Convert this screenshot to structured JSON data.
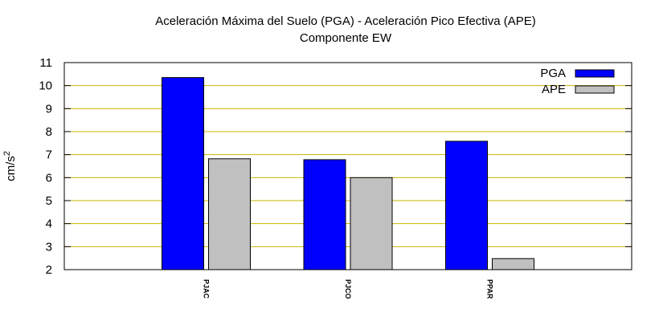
{
  "chart_data": {
    "type": "bar",
    "title": "Aceleración Máxima del Suelo (PGA) -  Aceleración Pico Efectiva (APE)",
    "subtitle": "Componente EW",
    "xlabel": "",
    "ylabel": "cm/s",
    "ylabel_superscript": "2",
    "ylim": [
      2,
      11
    ],
    "yticks": [
      2,
      3,
      4,
      5,
      6,
      7,
      8,
      9,
      10,
      11
    ],
    "grid": true,
    "legend_position": "top-right",
    "categories": [
      "PJAC",
      "PJCO",
      "PPAR"
    ],
    "series": [
      {
        "name": "PGA",
        "color": "#0000ff",
        "values": [
          10.35,
          6.78,
          7.58
        ]
      },
      {
        "name": "APE",
        "color": "#c0c0c0",
        "values": [
          6.82,
          6.0,
          2.48
        ]
      }
    ],
    "grid_color": "#c8b400"
  }
}
